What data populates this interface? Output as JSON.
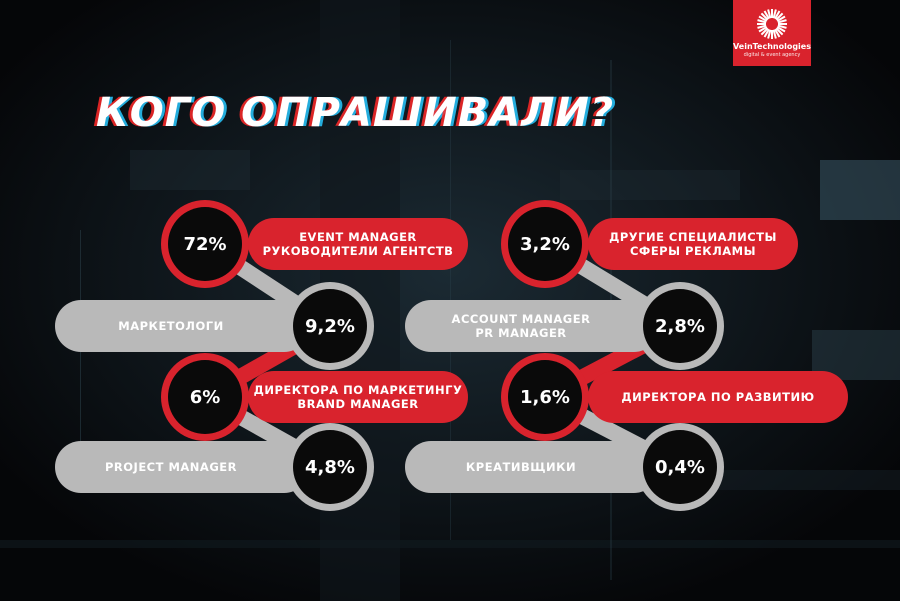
{
  "title": "КОГО ОПРАШИВАЛИ?",
  "logo": {
    "name": "VeinTechnologies",
    "tagline": "digital & event agency",
    "icon": "sunburst-icon",
    "color": "#d9232d"
  },
  "colors": {
    "red": "#d9232d",
    "gray": "#b9b9b9",
    "circle": "#0a0a0a"
  },
  "items": [
    {
      "value": "72%",
      "lines": [
        "EVENT MANAGER",
        "РУКОВОДИТЕЛИ АГЕНТСТВ"
      ],
      "style": "red"
    },
    {
      "value": "9,2%",
      "lines": [
        "МАРКЕТОЛОГИ"
      ],
      "style": "gray"
    },
    {
      "value": "6%",
      "lines": [
        "ДИРЕКТОРА ПО МАРКЕТИНГУ",
        "BRAND MANAGER"
      ],
      "style": "red"
    },
    {
      "value": "4,8%",
      "lines": [
        "PROJECT MANAGER"
      ],
      "style": "gray"
    },
    {
      "value": "3,2%",
      "lines": [
        "ДРУГИЕ СПЕЦИАЛИСТЫ",
        "СФЕРЫ РЕКЛАМЫ"
      ],
      "style": "red"
    },
    {
      "value": "2,8%",
      "lines": [
        "ACCOUNT MANAGER",
        "PR MANAGER"
      ],
      "style": "gray"
    },
    {
      "value": "1,6%",
      "lines": [
        "ДИРЕКТОРА ПО РАЗВИТИЮ"
      ],
      "style": "red"
    },
    {
      "value": "0,4%",
      "lines": [
        "КРЕАТИВЩИКИ"
      ],
      "style": "gray"
    }
  ]
}
